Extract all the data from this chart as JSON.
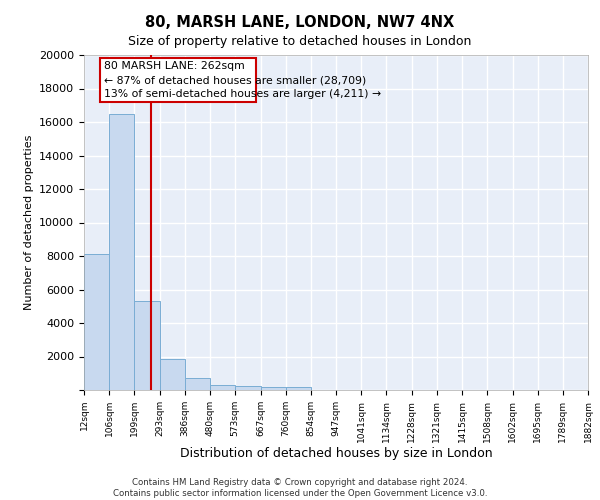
{
  "title1": "80, MARSH LANE, LONDON, NW7 4NX",
  "title2": "Size of property relative to detached houses in London",
  "xlabel": "Distribution of detached houses by size in London",
  "ylabel": "Number of detached properties",
  "bin_edges": [
    12,
    106,
    199,
    293,
    386,
    480,
    573,
    667,
    760,
    854,
    947,
    1041,
    1134,
    1228,
    1321,
    1415,
    1508,
    1602,
    1695,
    1789,
    1882
  ],
  "bar_heights": [
    8100,
    16500,
    5300,
    1850,
    700,
    320,
    230,
    200,
    150,
    0,
    0,
    0,
    0,
    0,
    0,
    0,
    0,
    0,
    0,
    0
  ],
  "bar_color": "#c8d9ef",
  "bar_edge_color": "#7aadd4",
  "red_line_x": 262,
  "annotation_line1": "80 MARSH LANE: 262sqm",
  "annotation_line2": "← 87% of detached houses are smaller (28,709)",
  "annotation_line3": "13% of semi-detached houses are larger (4,211) →",
  "annotation_box_color": "#ffffff",
  "annotation_border_color": "#cc0000",
  "ylim": [
    0,
    20000
  ],
  "yticks": [
    0,
    2000,
    4000,
    6000,
    8000,
    10000,
    12000,
    14000,
    16000,
    18000,
    20000
  ],
  "background_color": "#e8eef8",
  "grid_color": "#ffffff",
  "footer_text": "Contains HM Land Registry data © Crown copyright and database right 2024.\nContains public sector information licensed under the Open Government Licence v3.0.",
  "tick_labels": [
    "12sqm",
    "106sqm",
    "199sqm",
    "293sqm",
    "386sqm",
    "480sqm",
    "573sqm",
    "667sqm",
    "760sqm",
    "854sqm",
    "947sqm",
    "1041sqm",
    "1134sqm",
    "1228sqm",
    "1321sqm",
    "1415sqm",
    "1508sqm",
    "1602sqm",
    "1695sqm",
    "1789sqm",
    "1882sqm"
  ]
}
